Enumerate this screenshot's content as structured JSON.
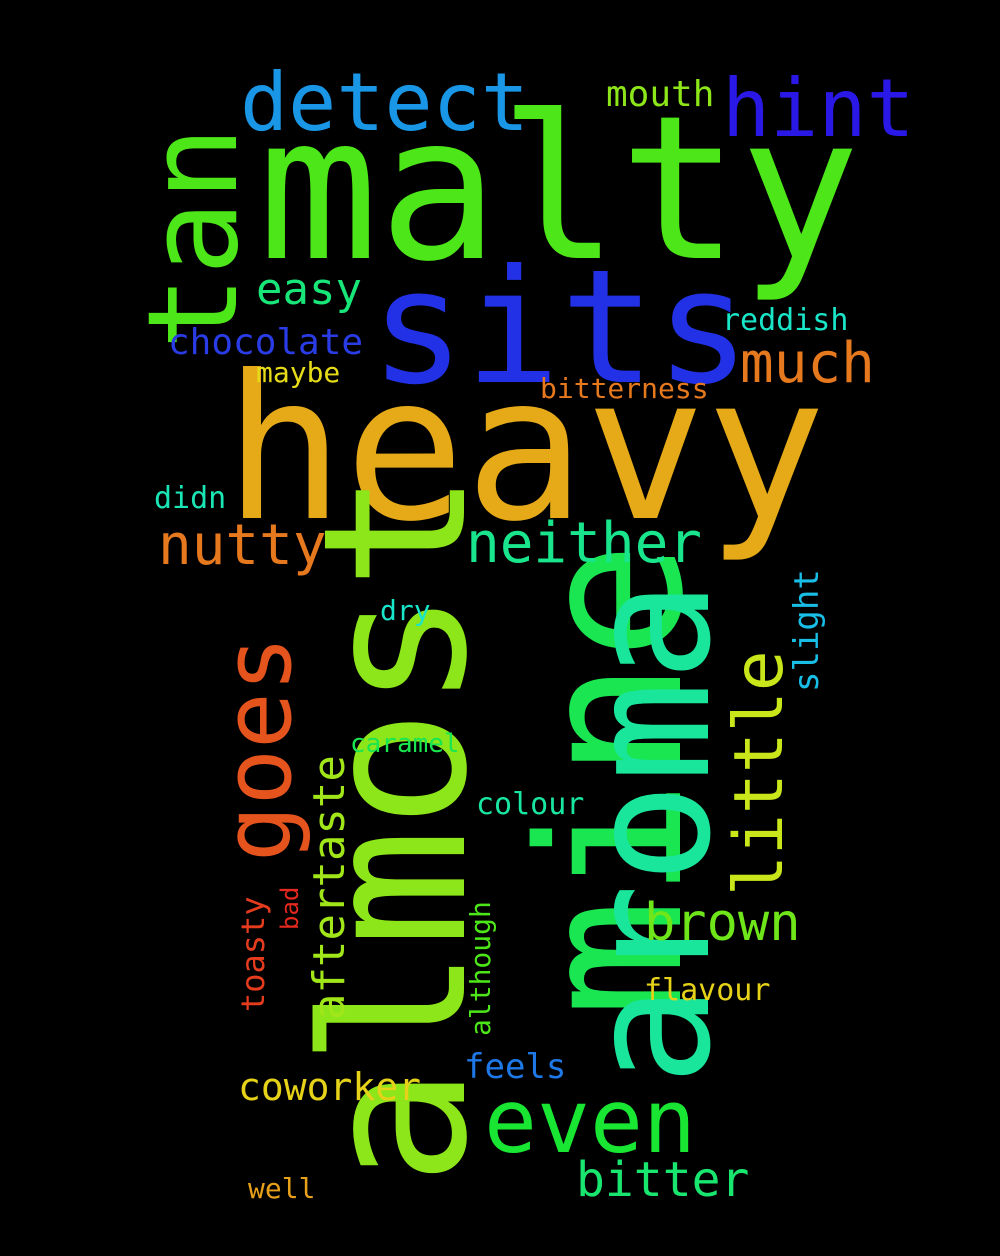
{
  "words": [
    {
      "text": "malty",
      "color": "#4ce619"
    },
    {
      "text": "heavy",
      "color": "#e6aa19"
    },
    {
      "text": "sits",
      "color": "#2231e6"
    },
    {
      "text": "almost",
      "color": "#8ce619"
    },
    {
      "text": "mine",
      "color": "#19e650"
    },
    {
      "text": "aroma",
      "color": "#19e69b"
    },
    {
      "text": "tan",
      "color": "#4ce619"
    },
    {
      "text": "detect",
      "color": "#1996e6"
    },
    {
      "text": "hint",
      "color": "#2a19e6"
    },
    {
      "text": "even",
      "color": "#19e632"
    },
    {
      "text": "goes",
      "color": "#e6541e"
    },
    {
      "text": "little",
      "color": "#c8e619"
    },
    {
      "text": "neither",
      "color": "#19e68c"
    },
    {
      "text": "nutty",
      "color": "#e6781e"
    },
    {
      "text": "much",
      "color": "#e6781e"
    },
    {
      "text": "brown",
      "color": "#6ee619"
    },
    {
      "text": "aftertaste",
      "color": "#a0e619"
    },
    {
      "text": "bitter",
      "color": "#19e66e"
    },
    {
      "text": "easy",
      "color": "#19e678"
    },
    {
      "text": "coworker",
      "color": "#e6d219"
    },
    {
      "text": "chocolate",
      "color": "#2a3ce6"
    },
    {
      "text": "mouth",
      "color": "#8ce619"
    },
    {
      "text": "slight",
      "color": "#19bee6"
    },
    {
      "text": "reddish",
      "color": "#19e6c8"
    },
    {
      "text": "feels",
      "color": "#1e78e6"
    },
    {
      "text": "flavour",
      "color": "#e6d219"
    },
    {
      "text": "toasty",
      "color": "#e63c1e"
    },
    {
      "text": "although",
      "color": "#4ce619"
    },
    {
      "text": "bitterness",
      "color": "#e6781e"
    },
    {
      "text": "maybe",
      "color": "#e6dc19"
    },
    {
      "text": "didn",
      "color": "#19e6b4"
    },
    {
      "text": "colour",
      "color": "#19e6a0"
    },
    {
      "text": "caramel",
      "color": "#19e650"
    },
    {
      "text": "dry",
      "color": "#19e6c8"
    },
    {
      "text": "well",
      "color": "#e6a019"
    },
    {
      "text": "bad",
      "color": "#e6281e"
    }
  ]
}
